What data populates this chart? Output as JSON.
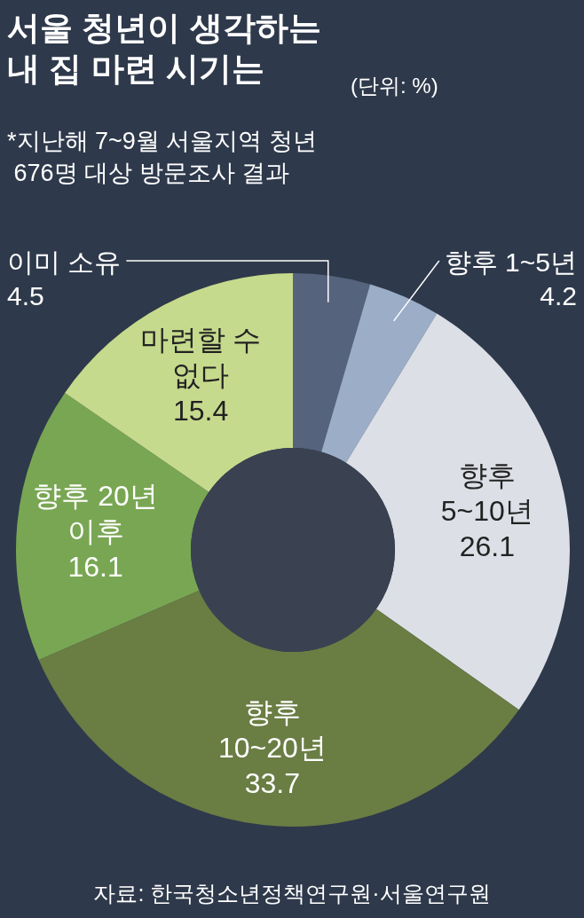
{
  "chart_data": {
    "type": "donut",
    "title": "서울 청년이 생각하는\n내 집 마련 시기는",
    "subtitle": "(단위: %)",
    "categories": [
      "이미 소유",
      "향후 1~5년",
      "향후\n5~10년",
      "향후\n10~20년",
      "향후 20년\n이후",
      "마련할 수\n없다"
    ],
    "values": [
      4.5,
      4.2,
      26.1,
      33.7,
      16.1,
      15.4
    ],
    "colors": [
      "#56637d",
      "#9badc7",
      "#dcdfe6",
      "#6a7d43",
      "#79a653",
      "#c6da8d"
    ],
    "data_labels": true,
    "annotations": [
      "*지난해 7~9월 서울지역 청년\n 676명 대상 방문조사 결과",
      "자료: 한국청소년정책연구원·서울연구원"
    ]
  }
}
